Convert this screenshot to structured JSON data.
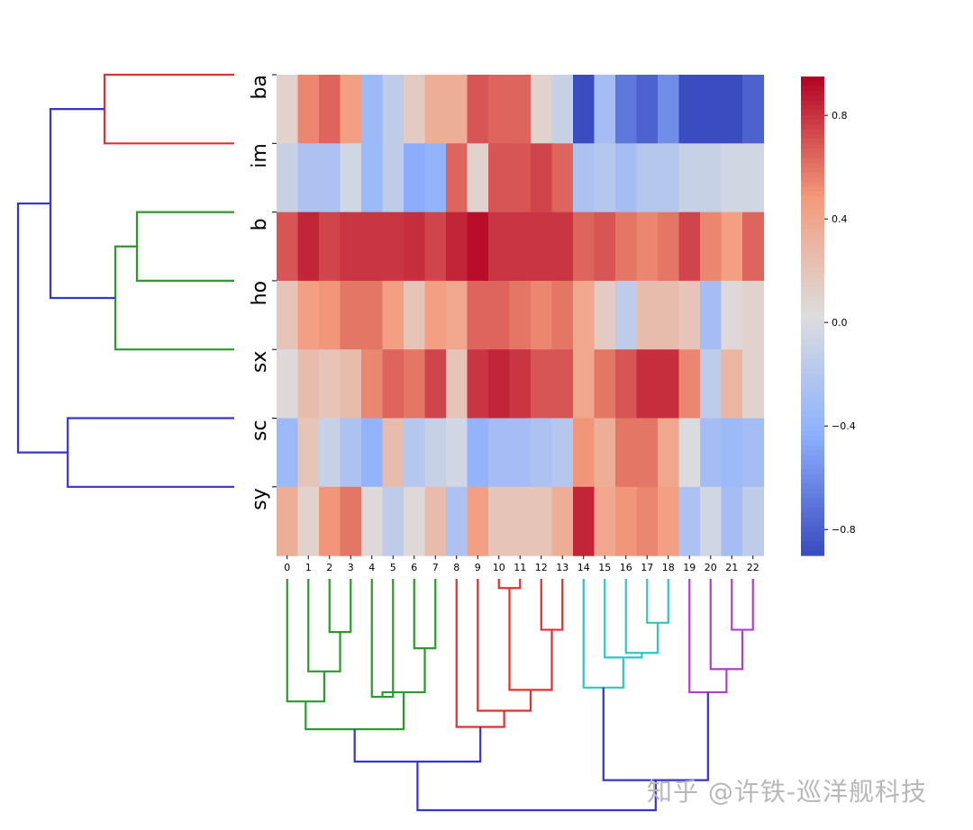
{
  "chart_data": {
    "type": "heatmap",
    "title": "",
    "row_labels": [
      "ba",
      "im",
      "b",
      "ho",
      "sx",
      "sc",
      "sy"
    ],
    "col_labels": [
      "0",
      "1",
      "2",
      "3",
      "4",
      "5",
      "6",
      "7",
      "8",
      "9",
      "10",
      "11",
      "12",
      "13",
      "14",
      "15",
      "16",
      "17",
      "18",
      "19",
      "20",
      "21",
      "22"
    ],
    "values": [
      [
        0.1,
        0.55,
        0.65,
        0.45,
        -0.35,
        -0.15,
        0.15,
        0.35,
        0.35,
        0.7,
        0.65,
        0.65,
        0.1,
        -0.1,
        -0.9,
        -0.3,
        -0.7,
        -0.8,
        -0.6,
        -0.9,
        -0.9,
        -0.9,
        -0.8
      ],
      [
        -0.1,
        -0.25,
        -0.25,
        -0.05,
        -0.35,
        -0.15,
        -0.45,
        -0.4,
        0.65,
        0.1,
        0.7,
        0.7,
        0.75,
        0.65,
        -0.25,
        -0.2,
        -0.3,
        -0.2,
        -0.2,
        -0.1,
        -0.1,
        -0.05,
        -0.05
      ],
      [
        0.7,
        0.85,
        0.75,
        0.8,
        0.8,
        0.8,
        0.82,
        0.75,
        0.85,
        0.92,
        0.8,
        0.8,
        0.8,
        0.8,
        0.65,
        0.7,
        0.6,
        0.55,
        0.6,
        0.75,
        0.55,
        0.45,
        0.65
      ],
      [
        0.2,
        0.45,
        0.5,
        0.6,
        0.6,
        0.45,
        0.2,
        0.45,
        0.4,
        0.65,
        0.65,
        0.6,
        0.55,
        0.6,
        0.4,
        0.15,
        -0.15,
        0.25,
        0.25,
        0.2,
        -0.3,
        0.05,
        0.1
      ],
      [
        0.05,
        0.25,
        0.2,
        0.25,
        0.55,
        0.65,
        0.6,
        0.75,
        0.2,
        0.8,
        0.85,
        0.8,
        0.7,
        0.7,
        0.4,
        0.6,
        0.7,
        0.82,
        0.82,
        0.55,
        -0.15,
        0.3,
        0.1
      ],
      [
        -0.35,
        0.2,
        -0.1,
        -0.25,
        -0.4,
        0.25,
        -0.2,
        -0.1,
        -0.05,
        -0.4,
        -0.3,
        -0.3,
        -0.25,
        -0.2,
        0.5,
        0.35,
        0.6,
        0.6,
        0.4,
        0.0,
        -0.3,
        -0.35,
        -0.3
      ],
      [
        0.35,
        0.1,
        0.5,
        0.6,
        0.05,
        -0.15,
        0.05,
        0.25,
        -0.25,
        0.45,
        0.2,
        0.2,
        0.2,
        0.35,
        0.85,
        0.4,
        0.5,
        0.55,
        0.45,
        -0.25,
        -0.05,
        -0.3,
        -0.15
      ]
    ],
    "colormap": "coolwarm",
    "vmin": -0.9,
    "vmax": 0.95,
    "colorbar_ticks": [
      0.8,
      0.4,
      0.0,
      -0.4,
      -0.8
    ],
    "colorbar_tick_labels": [
      "0.8",
      "0.4",
      "0.0",
      "−0.4",
      "−0.8"
    ],
    "row_dendrogram": {
      "orientation": "left",
      "links": [
        {
          "a": "leaf:0",
          "b": "leaf:1",
          "height": 0.6,
          "color": "#e03030"
        },
        {
          "a": "leaf:2",
          "b": "leaf:3",
          "height": 0.45,
          "color": "#2a9a2a"
        },
        {
          "a": "link:1",
          "b": "leaf:4",
          "height": 0.55,
          "color": "#2a9a2a"
        },
        {
          "a": "link:0",
          "b": "link:2",
          "height": 0.85,
          "color": "#3535cc"
        },
        {
          "a": "leaf:5",
          "b": "leaf:6",
          "height": 0.77,
          "color": "#3535cc"
        },
        {
          "a": "link:3",
          "b": "link:4",
          "height": 1.0,
          "color": "#3535cc"
        }
      ]
    },
    "col_dendrogram": {
      "orientation": "bottom",
      "links": [
        {
          "a": "leaf:10",
          "b": "leaf:11",
          "height": 0.04,
          "color": "#e03030"
        },
        {
          "a": "leaf:12",
          "b": "leaf:13",
          "height": 0.22,
          "color": "#e03030"
        },
        {
          "a": "leaf:17",
          "b": "leaf:18",
          "height": 0.19,
          "color": "#33c4c4"
        },
        {
          "a": "leaf:21",
          "b": "leaf:22",
          "height": 0.22,
          "color": "#b040c8"
        },
        {
          "a": "leaf:2",
          "b": "leaf:3",
          "height": 0.23,
          "color": "#2a9a2a"
        },
        {
          "a": "leaf:6",
          "b": "leaf:7",
          "height": 0.3,
          "color": "#2a9a2a"
        },
        {
          "a": "leaf:16",
          "b": "link:2",
          "height": 0.32,
          "color": "#33c4c4"
        },
        {
          "a": "leaf:15",
          "b": "link:6",
          "height": 0.34,
          "color": "#33c4c4"
        },
        {
          "a": "leaf:1",
          "b": "link:4",
          "height": 0.4,
          "color": "#2a9a2a"
        },
        {
          "a": "leaf:20",
          "b": "link:3",
          "height": 0.39,
          "color": "#b040c8"
        },
        {
          "a": "leaf:14",
          "b": "link:7",
          "height": 0.47,
          "color": "#33c4c4"
        },
        {
          "a": "leaf:19",
          "b": "link:9",
          "height": 0.49,
          "color": "#b040c8"
        },
        {
          "a": "leaf:4",
          "b": "leaf:5",
          "height": 0.51,
          "color": "#2a9a2a"
        },
        {
          "a": "link:12",
          "b": "link:5",
          "height": 0.49,
          "color": "#2a9a2a"
        },
        {
          "a": "leaf:0",
          "b": "link:8",
          "height": 0.53,
          "color": "#2a9a2a"
        },
        {
          "a": "link:0",
          "b": "link:1",
          "height": 0.48,
          "color": "#e03030"
        },
        {
          "a": "leaf:9",
          "b": "link:15",
          "height": 0.57,
          "color": "#e03030"
        },
        {
          "a": "link:14",
          "b": "link:13",
          "height": 0.65,
          "color": "#2a9a2a"
        },
        {
          "a": "leaf:8",
          "b": "link:16",
          "height": 0.64,
          "color": "#e03030"
        },
        {
          "a": "link:17",
          "b": "link:18",
          "height": 0.79,
          "color": "#3535cc"
        },
        {
          "a": "link:10",
          "b": "link:11",
          "height": 0.87,
          "color": "#3535cc"
        },
        {
          "a": "link:19",
          "b": "link:20",
          "height": 1.0,
          "color": "#3535cc"
        }
      ]
    }
  },
  "watermark": "知乎 @许铁-巡洋舰科技"
}
